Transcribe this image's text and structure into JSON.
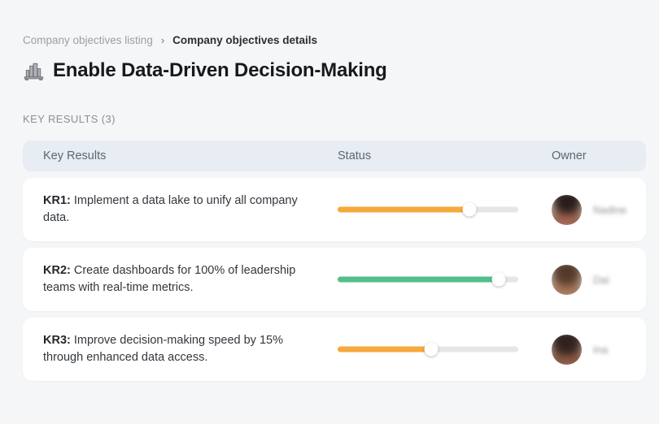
{
  "breadcrumb": {
    "separator": "›",
    "items": [
      {
        "label": "Company objectives listing"
      },
      {
        "label": "Company objectives details"
      }
    ]
  },
  "page": {
    "title": "Enable Data-Driven Decision-Making",
    "title_icon": "cityscape-icon"
  },
  "section": {
    "label": "KEY RESULTS (3)"
  },
  "table": {
    "columns": [
      "Key Results",
      "Status",
      "Owner"
    ],
    "rows": [
      {
        "kr_label": "KR1:",
        "kr_text": " Implement a data lake to unify all company data.",
        "progress_percent": 73,
        "progress_color": "#F6A93C",
        "owner_name": "Nadine"
      },
      {
        "kr_label": "KR2:",
        "kr_text": " Create dashboards for 100% of leadership teams with real-time metrics.",
        "progress_percent": 89,
        "progress_color": "#52BF8B",
        "owner_name": "Dai"
      },
      {
        "kr_label": "KR3:",
        "kr_text": " Improve decision-making speed by 15% through enhanced data access.",
        "progress_percent": 52,
        "progress_color": "#F6A93C",
        "owner_name": "Ina"
      }
    ]
  },
  "colors": {
    "background": "#F5F6F7",
    "header_row_bg": "#E8ECF3",
    "card_bg": "#FFFFFF",
    "track": "#E5E6E6",
    "orange": "#F6A93C",
    "green": "#52BF8B"
  }
}
